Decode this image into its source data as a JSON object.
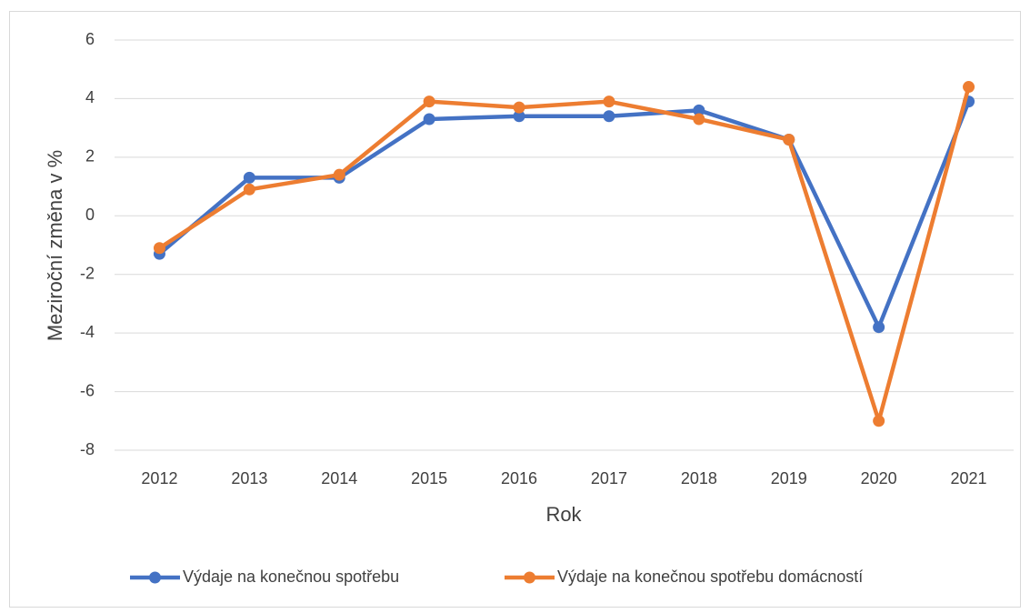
{
  "chart_data": {
    "type": "line",
    "x_label": "Rok",
    "y_label": "Meziroční změna v %",
    "categories": [
      "2012",
      "2013",
      "2014",
      "2015",
      "2016",
      "2017",
      "2018",
      "2019",
      "2020",
      "2021"
    ],
    "series": [
      {
        "name": "Výdaje na konečnou spotřebu",
        "color": "#4472c4",
        "values": [
          -1.3,
          1.3,
          1.3,
          3.3,
          3.4,
          3.4,
          3.6,
          2.6,
          -3.8,
          3.9
        ]
      },
      {
        "name": "Výdaje na konečnou spotřebu domácností",
        "color": "#ed7d31",
        "values": [
          -1.1,
          0.9,
          1.4,
          3.9,
          3.7,
          3.9,
          3.3,
          2.6,
          -7.0,
          4.4
        ]
      }
    ],
    "ylim": [
      -8,
      6
    ],
    "yticks": [
      -8,
      -6,
      -4,
      -2,
      0,
      2,
      4,
      6
    ],
    "grid": true,
    "legend": "bottom"
  }
}
